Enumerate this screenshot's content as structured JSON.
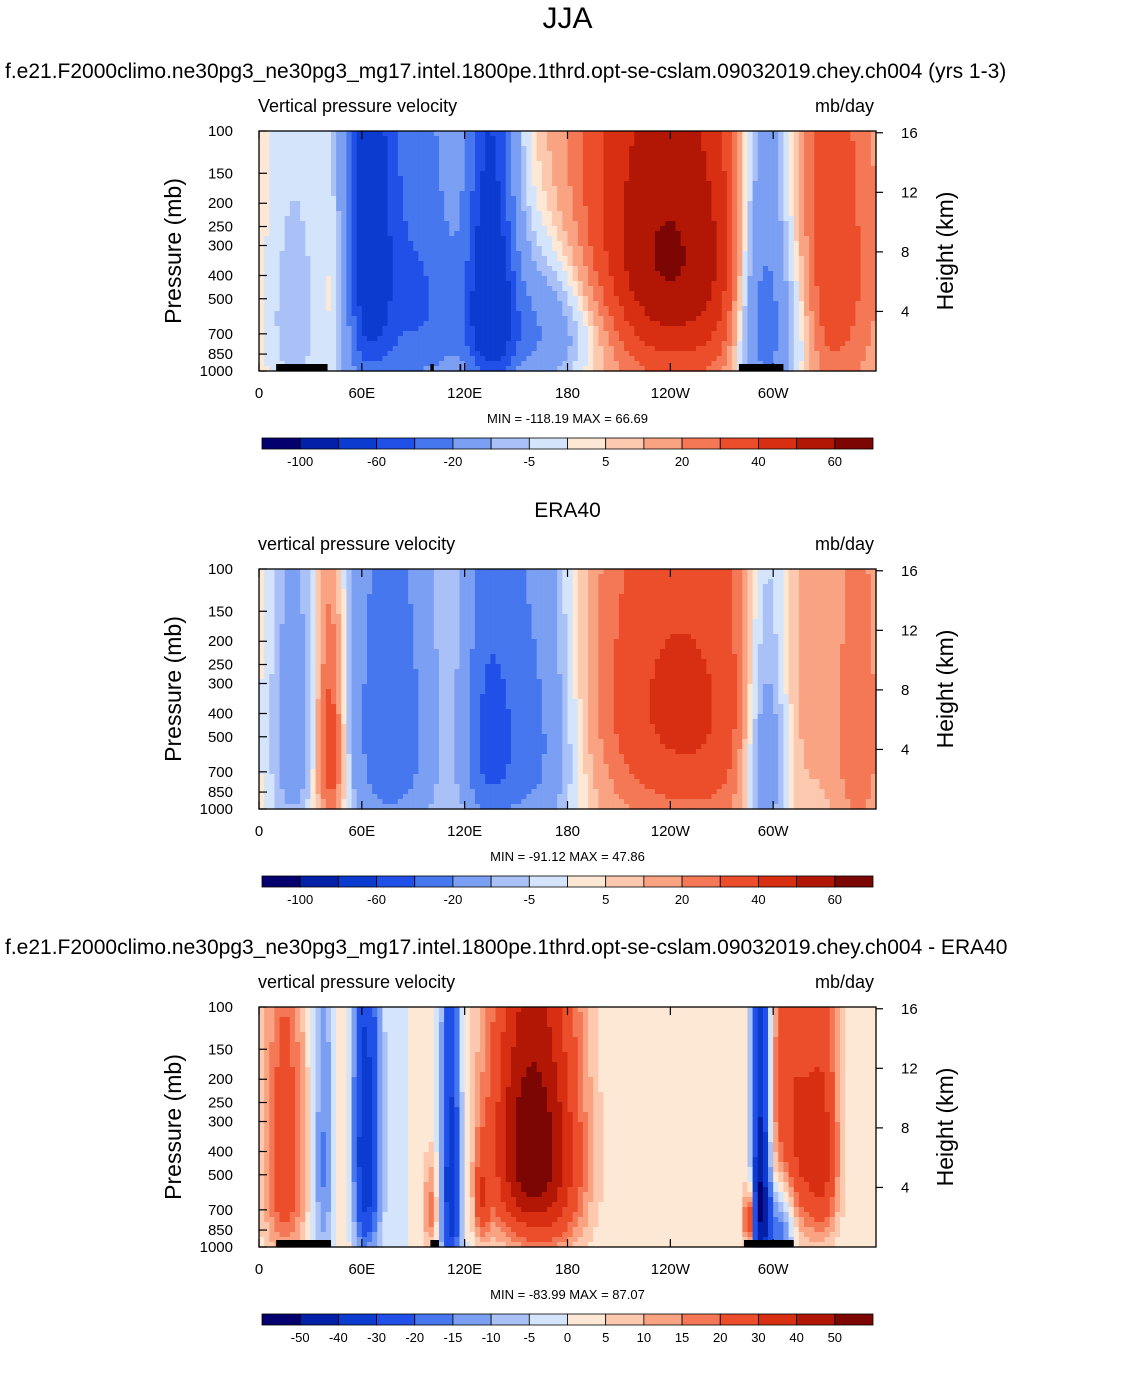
{
  "figure": {
    "title": "JJA",
    "model_caption": "f.e21.F2000climo.ne30pg3_ne30pg3_mg17.intel.1800pe.1thrd.opt-se-cslam.09032019.chey.ch004 (yrs 1-3)",
    "obs_caption": "ERA40",
    "diff_caption": "f.e21.F2000climo.ne30pg3_ne30pg3_mg17.intel.1800pe.1thrd.opt-se-cslam.09032019.chey.ch004 - ERA40"
  },
  "chart_data": [
    {
      "type": "heatmap",
      "name": "model",
      "left_title": "Vertical pressure velocity",
      "right_title": "mb/day",
      "ylabel": "Pressure (mb)",
      "ylabel_right": "Height (km)",
      "x_ticks": [
        "0",
        "60E",
        "120E",
        "180",
        "120W",
        "60W"
      ],
      "x_tick_values": [
        0,
        60,
        120,
        180,
        240,
        300
      ],
      "xlim": [
        0,
        360
      ],
      "y_ticks": [
        "100",
        "150",
        "200",
        "250",
        "300",
        "400",
        "500",
        "700",
        "850",
        "1000"
      ],
      "y_tick_values": [
        100,
        150,
        200,
        250,
        300,
        400,
        500,
        700,
        850,
        1000
      ],
      "ylim": [
        1000,
        100
      ],
      "height_ticks": [
        "16",
        "12",
        "8",
        "4"
      ],
      "height_tick_values": [
        16,
        12,
        8,
        4
      ],
      "stats": "MIN = -118.19  MAX =  66.69",
      "colorbar_labels": [
        "-100",
        "-60",
        "-20",
        "-5",
        "5",
        "20",
        "40",
        "60"
      ],
      "colorbar_colors": [
        "#04006d",
        "#0320a8",
        "#0b3bcf",
        "#2050e8",
        "#4677ee",
        "#7b9ff2",
        "#aac1f7",
        "#d4e4fb",
        "#fde8d6",
        "#fcc9ae",
        "#f9a383",
        "#f47855",
        "#ec4e2b",
        "#d82e12",
        "#b21705",
        "#7c0603"
      ],
      "land_mask": [
        [
          10,
          40
        ],
        [
          100,
          102
        ],
        [
          117,
          118
        ],
        [
          280,
          306
        ]
      ],
      "features": [
        {
          "lon": 50,
          "p": 450,
          "v": 32,
          "w": 9,
          "h": 320
        },
        {
          "lon": 20,
          "p": 600,
          "v": -18,
          "w": 11,
          "h": 450
        },
        {
          "lon": 62,
          "p": 330,
          "v": -85,
          "w": 11,
          "h": 500
        },
        {
          "lon": 80,
          "p": 420,
          "v": -42,
          "w": 22,
          "h": 560
        },
        {
          "lon": 100,
          "p": 500,
          "v": -30,
          "w": 14,
          "h": 500
        },
        {
          "lon": 135,
          "p": 420,
          "v": -95,
          "w": 10,
          "h": 500
        },
        {
          "lon": 160,
          "p": 640,
          "v": -50,
          "w": 28,
          "h": 330
        },
        {
          "lon": 240,
          "p": 420,
          "v": 40,
          "w": 42,
          "h": 520
        },
        {
          "lon": 210,
          "p": 250,
          "v": 14,
          "w": 70,
          "h": 280
        },
        {
          "lon": 295,
          "p": 560,
          "v": -70,
          "w": 11,
          "h": 520
        },
        {
          "lon": 336,
          "p": 430,
          "v": 22,
          "w": 20,
          "h": 620
        },
        {
          "lon": 315,
          "p": 650,
          "v": -15,
          "w": 8,
          "h": 400
        }
      ]
    },
    {
      "type": "heatmap",
      "name": "era40",
      "left_title": "vertical pressure velocity",
      "right_title": "mb/day",
      "ylabel": "Pressure (mb)",
      "ylabel_right": "Height (km)",
      "x_ticks": [
        "0",
        "60E",
        "120E",
        "180",
        "120W",
        "60W"
      ],
      "x_tick_values": [
        0,
        60,
        120,
        180,
        240,
        300
      ],
      "xlim": [
        0,
        360
      ],
      "y_ticks": [
        "100",
        "150",
        "200",
        "250",
        "300",
        "400",
        "500",
        "700",
        "850",
        "1000"
      ],
      "y_tick_values": [
        100,
        150,
        200,
        250,
        300,
        400,
        500,
        700,
        850,
        1000
      ],
      "ylim": [
        1000,
        100
      ],
      "height_ticks": [
        "16",
        "12",
        "8",
        "4"
      ],
      "height_tick_values": [
        16,
        12,
        8,
        4
      ],
      "stats": "MIN = -91.12  MAX =  47.86",
      "colorbar_labels": [
        "-100",
        "-60",
        "-20",
        "-5",
        "5",
        "20",
        "40",
        "60"
      ],
      "colorbar_colors": [
        "#04006d",
        "#0320a8",
        "#0b3bcf",
        "#2050e8",
        "#4677ee",
        "#7b9ff2",
        "#aac1f7",
        "#d4e4fb",
        "#fde8d6",
        "#fcc9ae",
        "#f9a383",
        "#f47855",
        "#ec4e2b",
        "#d82e12",
        "#b21705",
        "#7c0603"
      ],
      "land_mask": [],
      "features": [
        {
          "lon": 42,
          "p": 560,
          "v": 38,
          "w": 7,
          "h": 420
        },
        {
          "lon": 20,
          "p": 500,
          "v": -30,
          "w": 10,
          "h": 520
        },
        {
          "lon": 70,
          "p": 450,
          "v": -45,
          "w": 16,
          "h": 580
        },
        {
          "lon": 90,
          "p": 500,
          "v": -25,
          "w": 14,
          "h": 560
        },
        {
          "lon": 155,
          "p": 480,
          "v": -55,
          "w": 20,
          "h": 520
        },
        {
          "lon": 132,
          "p": 520,
          "v": -40,
          "w": 10,
          "h": 520
        },
        {
          "lon": 250,
          "p": 520,
          "v": 25,
          "w": 40,
          "h": 560
        },
        {
          "lon": 230,
          "p": 260,
          "v": 10,
          "w": 55,
          "h": 300
        },
        {
          "lon": 296,
          "p": 600,
          "v": -45,
          "w": 9,
          "h": 480
        },
        {
          "lon": 350,
          "p": 520,
          "v": 18,
          "w": 10,
          "h": 520
        }
      ]
    },
    {
      "type": "heatmap",
      "name": "difference",
      "left_title": "vertical pressure velocity",
      "right_title": "mb/day",
      "ylabel": "Pressure (mb)",
      "ylabel_right": "Height (km)",
      "x_ticks": [
        "0",
        "60E",
        "120E",
        "180",
        "120W",
        "60W"
      ],
      "x_tick_values": [
        0,
        60,
        120,
        180,
        240,
        300
      ],
      "xlim": [
        0,
        360
      ],
      "y_ticks": [
        "100",
        "150",
        "200",
        "250",
        "300",
        "400",
        "500",
        "700",
        "850",
        "1000"
      ],
      "y_tick_values": [
        100,
        150,
        200,
        250,
        300,
        400,
        500,
        700,
        850,
        1000
      ],
      "ylim": [
        1000,
        100
      ],
      "height_ticks": [
        "16",
        "12",
        "8",
        "4"
      ],
      "height_tick_values": [
        16,
        12,
        8,
        4
      ],
      "stats": "MIN = -83.99  MAX =  87.07",
      "colorbar_labels": [
        "-50",
        "-40",
        "-30",
        "-20",
        "-15",
        "-10",
        "-5",
        "0",
        "5",
        "10",
        "15",
        "20",
        "30",
        "40",
        "50"
      ],
      "colorbar_colors": [
        "#04006d",
        "#0320a8",
        "#0b3bcf",
        "#2050e8",
        "#4677ee",
        "#7b9ff2",
        "#aac1f7",
        "#d4e4fb",
        "#fde8d6",
        "#fcc9ae",
        "#f9a383",
        "#f47855",
        "#ec4e2b",
        "#d82e12",
        "#b21705",
        "#7c0603"
      ],
      "land_mask": [
        [
          10,
          42
        ],
        [
          100,
          105
        ],
        [
          283,
          312
        ]
      ],
      "features": [
        {
          "lon": 15,
          "p": 450,
          "v": 28,
          "w": 9,
          "h": 420
        },
        {
          "lon": 38,
          "p": 460,
          "v": -18,
          "w": 5,
          "h": 420
        },
        {
          "lon": 62,
          "p": 420,
          "v": -40,
          "w": 6,
          "h": 420
        },
        {
          "lon": 50,
          "p": 550,
          "v": 10,
          "w": 6,
          "h": 380
        },
        {
          "lon": 112,
          "p": 550,
          "v": -38,
          "w": 4,
          "h": 520
        },
        {
          "lon": 100,
          "p": 700,
          "v": 18,
          "w": 3,
          "h": 220
        },
        {
          "lon": 130,
          "p": 650,
          "v": 20,
          "w": 3,
          "h": 200
        },
        {
          "lon": 155,
          "p": 380,
          "v": 50,
          "w": 16,
          "h": 360
        },
        {
          "lon": 175,
          "p": 450,
          "v": 22,
          "w": 14,
          "h": 400
        },
        {
          "lon": 293,
          "p": 560,
          "v": -60,
          "w": 4,
          "h": 520
        },
        {
          "lon": 305,
          "p": 760,
          "v": -30,
          "w": 6,
          "h": 260
        },
        {
          "lon": 312,
          "p": 380,
          "v": 35,
          "w": 14,
          "h": 360
        },
        {
          "lon": 330,
          "p": 420,
          "v": 20,
          "w": 6,
          "h": 320
        },
        {
          "lon": 286,
          "p": 780,
          "v": 40,
          "w": 2,
          "h": 150
        }
      ]
    }
  ]
}
